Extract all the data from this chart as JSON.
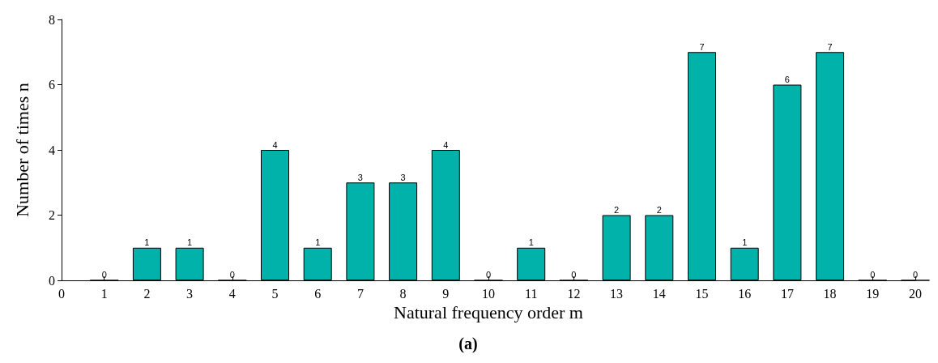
{
  "chart_data": {
    "type": "bar",
    "xlabel": "Natural frequency order m",
    "ylabel": "Number of times n",
    "x": [
      1,
      2,
      3,
      4,
      5,
      6,
      7,
      8,
      9,
      10,
      11,
      12,
      13,
      14,
      15,
      16,
      17,
      18,
      19,
      20
    ],
    "values": [
      0,
      1,
      1,
      0,
      4,
      1,
      3,
      3,
      4,
      0,
      1,
      0,
      2,
      2,
      7,
      1,
      6,
      7,
      0,
      0
    ],
    "color": "#00b2a9",
    "xlim": [
      0,
      20
    ],
    "xticks": [
      0,
      1,
      2,
      3,
      4,
      5,
      6,
      7,
      8,
      9,
      10,
      11,
      12,
      13,
      14,
      15,
      16,
      17,
      18,
      19,
      20
    ],
    "ylim": [
      0,
      8
    ],
    "yticks": [
      0,
      2,
      4,
      6,
      8
    ],
    "data_labels": true,
    "grid": false,
    "annotations": [
      "(a)"
    ]
  }
}
